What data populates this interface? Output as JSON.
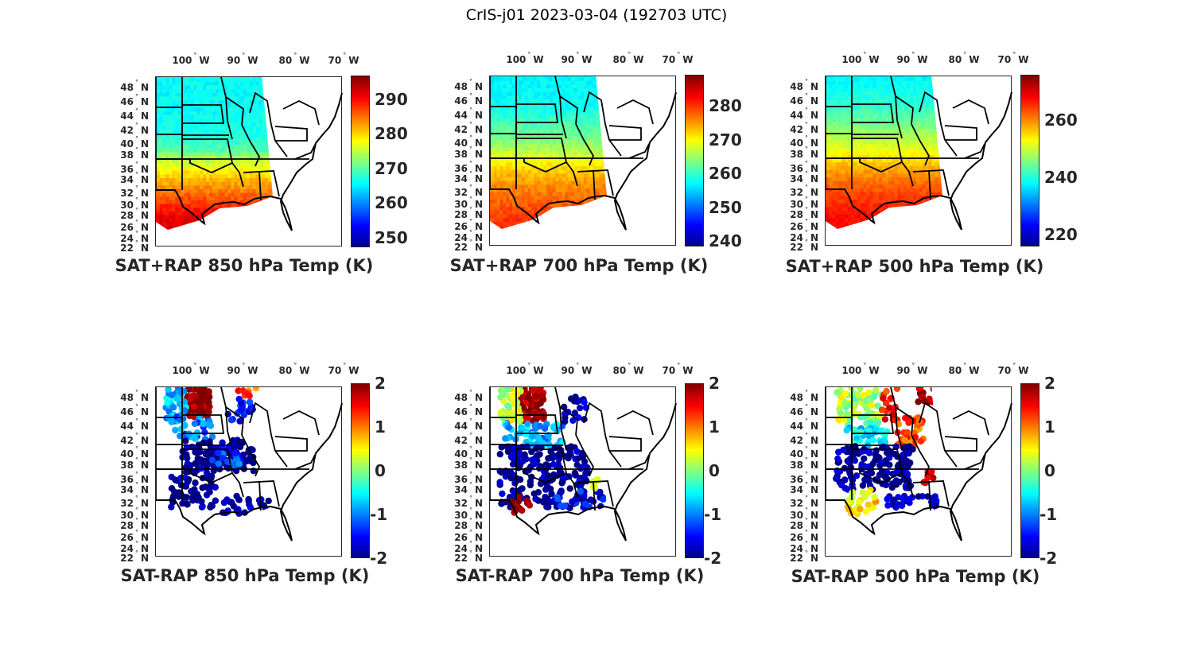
{
  "figure_title": "CrIS-j01 2023-03-04 (192703 UTC)",
  "chart_data": [
    {
      "type": "heatmap",
      "title": "SAT+RAP 850 hPa Temp (K)",
      "lon_ticks": [
        "100",
        "90",
        "80",
        "70"
      ],
      "lon_unit": "W",
      "lat_ticks": [
        "48",
        "46",
        "44",
        "42",
        "40",
        "38",
        "36",
        "34",
        "32",
        "30",
        "28",
        "26",
        "24",
        "22"
      ],
      "lat_unit": "N",
      "clim": [
        247.2,
        296.9
      ],
      "cbar_ticks": [
        250,
        260,
        270,
        280,
        290
      ],
      "lat_profile": [
        [
          49.5,
          266
        ],
        [
          45,
          266
        ],
        [
          41,
          267
        ],
        [
          38,
          270
        ],
        [
          36,
          276
        ],
        [
          33,
          282
        ],
        [
          30,
          287
        ],
        [
          27,
          292
        ]
      ]
    },
    {
      "type": "heatmap",
      "title": "SAT+RAP 700 hPa Temp (K)",
      "lon_ticks": [
        "100",
        "90",
        "80",
        "70"
      ],
      "lon_unit": "W",
      "lat_ticks": [
        "48",
        "46",
        "44",
        "42",
        "40",
        "38",
        "36",
        "34",
        "32",
        "30",
        "28",
        "26",
        "24",
        "22"
      ],
      "lat_unit": "N",
      "clim": [
        238.4,
        289.2
      ],
      "cbar_ticks": [
        240,
        250,
        260,
        270,
        280
      ],
      "lat_profile": [
        [
          49.5,
          257
        ],
        [
          45,
          258
        ],
        [
          41,
          262
        ],
        [
          38,
          266
        ],
        [
          35,
          272
        ],
        [
          32,
          276
        ],
        [
          27,
          280
        ]
      ]
    },
    {
      "type": "heatmap",
      "title": "SAT+RAP 500 hPa Temp (K)",
      "lon_ticks": [
        "100",
        "90",
        "80",
        "70"
      ],
      "lon_unit": "W",
      "lat_ticks": [
        "48",
        "46",
        "44",
        "42",
        "40",
        "38",
        "36",
        "34",
        "32",
        "30",
        "28",
        "26",
        "24",
        "22"
      ],
      "lat_unit": "N",
      "clim": [
        215.8,
        275.8
      ],
      "cbar_ticks": [
        220,
        240,
        260
      ],
      "lat_profile": [
        [
          49.5,
          238
        ],
        [
          45,
          241
        ],
        [
          41,
          247
        ],
        [
          38,
          252
        ],
        [
          35,
          258
        ],
        [
          32,
          263
        ],
        [
          27,
          268
        ]
      ]
    },
    {
      "type": "scatter",
      "title": "SAT-RAP 850 hPa Temp (K)",
      "lon_ticks": [
        "100",
        "90",
        "80",
        "70"
      ],
      "lon_unit": "W",
      "lat_ticks": [
        "48",
        "46",
        "44",
        "42",
        "40",
        "38",
        "36",
        "34",
        "32",
        "30",
        "28",
        "26",
        "24",
        "22"
      ],
      "lat_unit": "N",
      "clim": [
        -2,
        2
      ],
      "cbar_ticks": [
        -2,
        -1,
        0,
        1,
        2
      ],
      "regions": [
        {
          "lat": [
            44.5,
            49.5
          ],
          "lon": [
            -101,
            -96.5
          ],
          "v": 2,
          "n": 80
        },
        {
          "lat": [
            44,
            49.5
          ],
          "lon": [
            -105,
            -101
          ],
          "v": -0.7,
          "n": 50
        },
        {
          "lat": [
            41,
            45
          ],
          "lon": [
            -104,
            -96
          ],
          "v": -1,
          "n": 30
        },
        {
          "lat": [
            36,
            41
          ],
          "lon": [
            -102,
            -88
          ],
          "v": -2,
          "n": 120
        },
        {
          "lat": [
            30,
            36
          ],
          "lon": [
            -104,
            -95
          ],
          "v": -2,
          "n": 60
        },
        {
          "lat": [
            29,
            32
          ],
          "lon": [
            -94,
            -85
          ],
          "v": -1.8,
          "n": 30
        },
        {
          "lat": [
            44,
            48
          ],
          "lon": [
            -93,
            -88
          ],
          "v": -1.5,
          "n": 20
        },
        {
          "lat": [
            48,
            49.5
          ],
          "lon": [
            -91,
            -87
          ],
          "v": 1.2,
          "n": 8
        },
        {
          "lat": [
            36,
            40
          ],
          "lon": [
            -96,
            -90
          ],
          "v": -1.2,
          "n": 20
        }
      ]
    },
    {
      "type": "scatter",
      "title": "SAT-RAP 700 hPa Temp (K)",
      "lon_ticks": [
        "100",
        "90",
        "80",
        "70"
      ],
      "lon_unit": "W",
      "lat_ticks": [
        "48",
        "46",
        "44",
        "42",
        "40",
        "38",
        "36",
        "34",
        "32",
        "30",
        "28",
        "26",
        "24",
        "22"
      ],
      "lat_unit": "N",
      "clim": [
        -2,
        2
      ],
      "cbar_ticks": [
        -2,
        -1,
        0,
        1,
        2
      ],
      "regions": [
        {
          "lat": [
            44,
            49.5
          ],
          "lon": [
            -101,
            -96.5
          ],
          "v": 2,
          "n": 80
        },
        {
          "lat": [
            44,
            49.5
          ],
          "lon": [
            -105,
            -101
          ],
          "v": 0.3,
          "n": 50
        },
        {
          "lat": [
            40,
            44
          ],
          "lon": [
            -104,
            -92
          ],
          "v": -0.8,
          "n": 60
        },
        {
          "lat": [
            30,
            40
          ],
          "lon": [
            -105,
            -88
          ],
          "v": -2,
          "n": 200
        },
        {
          "lat": [
            29,
            32
          ],
          "lon": [
            -103,
            -99
          ],
          "v": 2,
          "n": 15
        },
        {
          "lat": [
            30,
            33
          ],
          "lon": [
            -94,
            -85
          ],
          "v": -1.5,
          "n": 25
        },
        {
          "lat": [
            44,
            48
          ],
          "lon": [
            -93,
            -88
          ],
          "v": -1.8,
          "n": 20
        },
        {
          "lat": [
            33,
            35
          ],
          "lon": [
            -88,
            -86
          ],
          "v": 0.5,
          "n": 8
        }
      ]
    },
    {
      "type": "scatter",
      "title": "SAT-RAP 500 hPa Temp (K)",
      "lon_ticks": [
        "100",
        "90",
        "80",
        "70"
      ],
      "lon_unit": "W",
      "lat_ticks": [
        "48",
        "46",
        "44",
        "42",
        "40",
        "38",
        "36",
        "34",
        "32",
        "30",
        "28",
        "26",
        "24",
        "22"
      ],
      "lat_unit": "N",
      "clim": [
        -2,
        2
      ],
      "cbar_ticks": [
        -2,
        -1,
        0,
        1,
        2
      ],
      "regions": [
        {
          "lat": [
            44,
            49.5
          ],
          "lon": [
            -105,
            -96
          ],
          "v": 0.2,
          "n": 80
        },
        {
          "lat": [
            44,
            49.5
          ],
          "lon": [
            -97,
            -93
          ],
          "v": 1.5,
          "n": 20
        },
        {
          "lat": [
            40,
            45
          ],
          "lon": [
            -93,
            -88
          ],
          "v": 1.2,
          "n": 40
        },
        {
          "lat": [
            40,
            44
          ],
          "lon": [
            -103,
            -95
          ],
          "v": -0.5,
          "n": 40
        },
        {
          "lat": [
            33,
            40
          ],
          "lon": [
            -105,
            -90
          ],
          "v": -2,
          "n": 150
        },
        {
          "lat": [
            29,
            33
          ],
          "lon": [
            -103,
            -97
          ],
          "v": 0.6,
          "n": 30
        },
        {
          "lat": [
            30,
            32
          ],
          "lon": [
            -95,
            -85
          ],
          "v": -1.8,
          "n": 30
        },
        {
          "lat": [
            34,
            36
          ],
          "lon": [
            -88,
            -86
          ],
          "v": 1.8,
          "n": 8
        },
        {
          "lat": [
            47,
            49.5
          ],
          "lon": [
            -89,
            -86
          ],
          "v": 1.9,
          "n": 12
        }
      ]
    }
  ]
}
